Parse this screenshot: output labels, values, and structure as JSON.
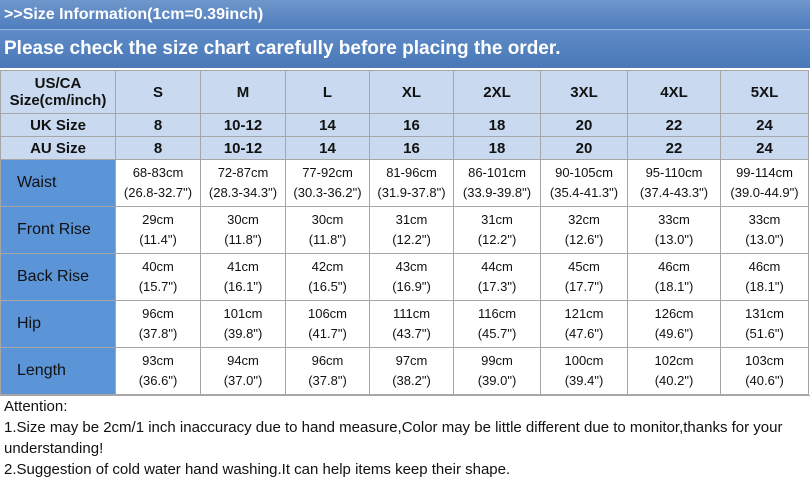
{
  "header": {
    "info": ">>Size Information(1cm=0.39inch)",
    "notice": "Please check the size chart carefully before placing the order."
  },
  "table": {
    "header": [
      "US/CA Size(cm/inch)",
      "S",
      "M",
      "L",
      "XL",
      "2XL",
      "3XL",
      "4XL",
      "5XL"
    ],
    "size_rows": [
      [
        "UK Size",
        "8",
        "10-12",
        "14",
        "16",
        "18",
        "20",
        "22",
        "24"
      ],
      [
        "AU Size",
        "8",
        "10-12",
        "14",
        "16",
        "18",
        "20",
        "22",
        "24"
      ]
    ],
    "measurements": [
      {
        "label": "Waist",
        "values": [
          [
            "68-83cm",
            "(26.8-32.7\")"
          ],
          [
            "72-87cm",
            "(28.3-34.3\")"
          ],
          [
            "77-92cm",
            "(30.3-36.2\")"
          ],
          [
            "81-96cm",
            "(31.9-37.8\")"
          ],
          [
            "86-101cm",
            "(33.9-39.8\")"
          ],
          [
            "90-105cm",
            "(35.4-41.3\")"
          ],
          [
            "95-110cm",
            "(37.4-43.3\")"
          ],
          [
            "99-114cm",
            "(39.0-44.9\")"
          ]
        ]
      },
      {
        "label": "Front Rise",
        "values": [
          [
            "29cm",
            "(11.4\")"
          ],
          [
            "30cm",
            "(11.8\")"
          ],
          [
            "30cm",
            "(11.8\")"
          ],
          [
            "31cm",
            "(12.2\")"
          ],
          [
            "31cm",
            "(12.2\")"
          ],
          [
            "32cm",
            "(12.6\")"
          ],
          [
            "33cm",
            "(13.0\")"
          ],
          [
            "33cm",
            "(13.0\")"
          ]
        ]
      },
      {
        "label": "Back Rise",
        "values": [
          [
            "40cm",
            "(15.7\")"
          ],
          [
            "41cm",
            "(16.1\")"
          ],
          [
            "42cm",
            "(16.5\")"
          ],
          [
            "43cm",
            "(16.9\")"
          ],
          [
            "44cm",
            "(17.3\")"
          ],
          [
            "45cm",
            "(17.7\")"
          ],
          [
            "46cm",
            "(18.1\")"
          ],
          [
            "46cm",
            "(18.1\")"
          ]
        ]
      },
      {
        "label": "Hip",
        "values": [
          [
            "96cm",
            "(37.8\")"
          ],
          [
            "101cm",
            "(39.8\")"
          ],
          [
            "106cm",
            "(41.7\")"
          ],
          [
            "111cm",
            "(43.7\")"
          ],
          [
            "116cm",
            "(45.7\")"
          ],
          [
            "121cm",
            "(47.6\")"
          ],
          [
            "126cm",
            "(49.6\")"
          ],
          [
            "131cm",
            "(51.6\")"
          ]
        ]
      },
      {
        "label": "Length",
        "values": [
          [
            "93cm",
            "(36.6\")"
          ],
          [
            "94cm",
            "(37.0\")"
          ],
          [
            "96cm",
            "(37.8\")"
          ],
          [
            "97cm",
            "(38.2\")"
          ],
          [
            "99cm",
            "(39.0\")"
          ],
          [
            "100cm",
            "(39.4\")"
          ],
          [
            "102cm",
            "(40.2\")"
          ],
          [
            "103cm",
            "(40.6\")"
          ]
        ]
      }
    ]
  },
  "notes": [
    "Attention:",
    "1.Size may be 2cm/1 inch inaccuracy due to hand measure,Color may be little different due to monitor,thanks for your understanding!",
    "2.Suggestion of cold water hand washing.It can help items keep their shape."
  ]
}
